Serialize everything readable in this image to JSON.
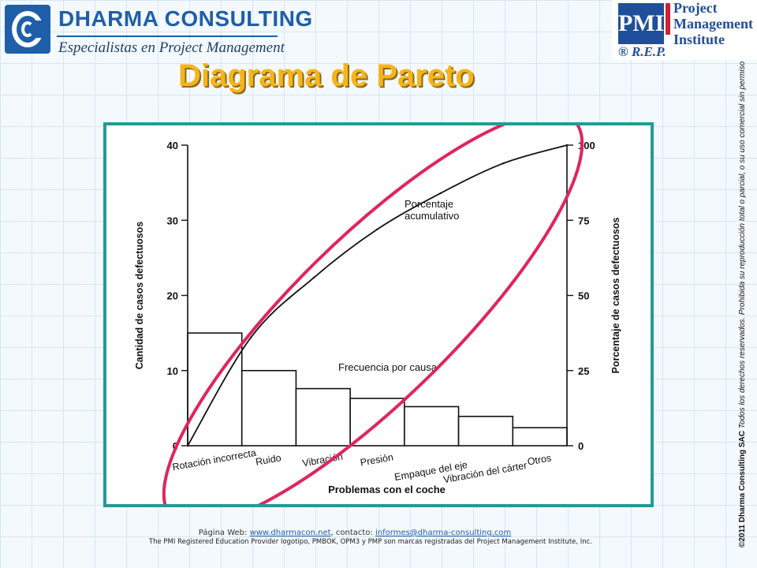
{
  "header": {
    "company_name": "DHARMA CONSULTING",
    "company_tagline": "Especialistas en Project Management",
    "pmi_logo_text": "PMI",
    "pmi_line1": "Project",
    "pmi_line2": "Management",
    "pmi_line3": "Institute",
    "pmi_rep": "® R.E.P."
  },
  "slide": {
    "title": "Diagrama de Pareto"
  },
  "chart_data": {
    "type": "bar",
    "xlabel": "Problemas con el coche",
    "ylabel": "Cantidad de casos defectuosos",
    "y2label": "Porcentaje de casos defectuosos",
    "ylim": [
      0,
      40
    ],
    "y2lim": [
      0,
      100
    ],
    "yticks": [
      "0",
      "10",
      "20",
      "30",
      "40"
    ],
    "y2ticks": [
      "0",
      "25",
      "50",
      "75",
      "100"
    ],
    "categories": [
      "Rotación incorrecta",
      "Ruido",
      "Vibración",
      "Presión",
      "Empaque del eje",
      "Vibración del cárter",
      "Otros"
    ],
    "series": [
      {
        "name": "Frecuencia por causa",
        "type": "bar",
        "values": [
          15,
          10,
          7.6,
          6.3,
          5.2,
          3.9,
          2.4
        ]
      },
      {
        "name": "Porcentaje acumulativo",
        "type": "line",
        "values": [
          0,
          36,
          56,
          72,
          84,
          94,
          100
        ]
      }
    ],
    "annotations": [
      {
        "text": "Porcentaje\nacumulativo"
      },
      {
        "text": "Frecuencia por causa"
      }
    ],
    "grid": false,
    "legend": "none"
  },
  "footer": {
    "web_prefix": "Página Web:",
    "web_link": "www.dharmacon.net",
    "contact_prefix": ", contacto:",
    "contact_link": "informes@dharma-consulting.com",
    "legal": "The PMI Registered Education Provider logotipo, PMBOK, OPM3 y PMP son marcas registradas del Project Management Institute, Inc."
  },
  "side_note": {
    "bold": "©2011  Dharma Consulting SAC",
    "italic": " Todos los derechos reservados. Prohibida su reproducción total o parcial, o su uso comercial sin permiso"
  },
  "colors": {
    "title": "#f7b41a",
    "frame": "#249a98",
    "ellipse": "#e0245e",
    "brand": "#1f5fa9"
  }
}
